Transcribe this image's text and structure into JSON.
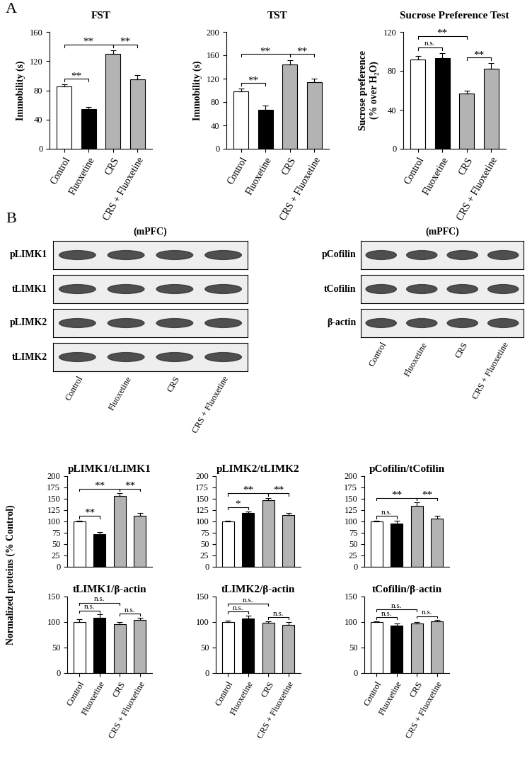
{
  "panel_labels": [
    "A",
    "B"
  ],
  "shared_ylabel": "Normalized proteins (% Control)",
  "blots": [
    {
      "title": "(mPFC)",
      "rows": [
        "pLIMK1",
        "tLIMK1",
        "pLIMK2",
        "tLIMK2"
      ],
      "lanes": [
        "Control",
        "Fluoxetine",
        "CRS",
        "CRS + Fluoxetine"
      ]
    },
    {
      "title": "(mPFC)",
      "rows": [
        "pCofilin",
        "tCofilin",
        "β-actin"
      ],
      "lanes": [
        "Control",
        "Fluoxetine",
        "CRS",
        "CRS + Fluoxetine"
      ]
    }
  ],
  "chart_data": [
    {
      "type": "bar",
      "title": "FST",
      "ylabel": "Immobility (s)",
      "categories": [
        "Control",
        "Fluoxetine",
        "CRS",
        "CRS + Fluoxetine"
      ],
      "values": [
        85,
        54,
        130,
        95
      ],
      "errors": [
        3,
        3,
        5,
        6
      ],
      "colors": [
        "#ffffff",
        "#000000",
        "#b3b3b3",
        "#b3b3b3"
      ],
      "ylim": [
        0,
        160
      ],
      "yticks": [
        0,
        40,
        80,
        120,
        160
      ],
      "annotations": [
        {
          "between": [
            "Control",
            "Fluoxetine"
          ],
          "text": "**"
        },
        {
          "between": [
            "Control",
            "CRS"
          ],
          "text": "**"
        },
        {
          "between": [
            "CRS",
            "CRS + Fluoxetine"
          ],
          "text": "**"
        }
      ]
    },
    {
      "type": "bar",
      "title": "TST",
      "ylabel": "Immobility (s)",
      "categories": [
        "Control",
        "Fluoxetine",
        "CRS",
        "CRS + Fluoxetine"
      ],
      "values": [
        98,
        67,
        144,
        114
      ],
      "errors": [
        5,
        7,
        8,
        6
      ],
      "colors": [
        "#ffffff",
        "#000000",
        "#b3b3b3",
        "#b3b3b3"
      ],
      "ylim": [
        0,
        200
      ],
      "yticks": [
        0,
        40,
        80,
        120,
        160,
        200
      ],
      "annotations": [
        {
          "between": [
            "Control",
            "Fluoxetine"
          ],
          "text": "**"
        },
        {
          "between": [
            "Control",
            "CRS"
          ],
          "text": "**"
        },
        {
          "between": [
            "CRS",
            "CRS + Fluoxetine"
          ],
          "text": "**"
        }
      ]
    },
    {
      "type": "bar",
      "title": "Sucrose Preference Test",
      "ylabel": "Sucrose preference\n(% over H₂O)",
      "categories": [
        "Control",
        "Fluoxetine",
        "CRS",
        "CRS + Fluoxetine"
      ],
      "values": [
        92,
        93,
        57,
        82
      ],
      "errors": [
        3,
        5,
        3,
        6
      ],
      "colors": [
        "#ffffff",
        "#000000",
        "#b3b3b3",
        "#b3b3b3"
      ],
      "ylim": [
        0,
        120
      ],
      "yticks": [
        0,
        40,
        80,
        120
      ],
      "annotations": [
        {
          "between": [
            "Control",
            "Fluoxetine"
          ],
          "text": "n.s."
        },
        {
          "between": [
            "Control",
            "CRS"
          ],
          "text": "**"
        },
        {
          "between": [
            "CRS",
            "CRS + Fluoxetine"
          ],
          "text": "**"
        }
      ]
    },
    {
      "type": "bar",
      "title": "pLIMK1/tLIMK1",
      "tick_labels": "y",
      "categories": [
        "Control",
        "Fluoxetine",
        "CRS",
        "CRS + Fluoxetine"
      ],
      "values": [
        100,
        72,
        157,
        112
      ],
      "errors": [
        2,
        4,
        5,
        6
      ],
      "colors": [
        "#ffffff",
        "#000000",
        "#b3b3b3",
        "#b3b3b3"
      ],
      "ylim": [
        0,
        200
      ],
      "yticks": [
        0,
        25,
        50,
        75,
        100,
        125,
        150,
        175,
        200
      ],
      "annotations": [
        {
          "between": [
            "Control",
            "Fluoxetine"
          ],
          "text": "**"
        },
        {
          "between": [
            "Control",
            "CRS"
          ],
          "text": "**"
        },
        {
          "between": [
            "CRS",
            "CRS + Fluoxetine"
          ],
          "text": "**"
        }
      ]
    },
    {
      "type": "bar",
      "title": "pLIMK2/tLIMK2",
      "tick_labels": "y",
      "categories": [
        "Control",
        "Fluoxetine",
        "CRS",
        "CRS + Fluoxetine"
      ],
      "values": [
        100,
        118,
        147,
        114
      ],
      "errors": [
        2,
        4,
        5,
        4
      ],
      "colors": [
        "#ffffff",
        "#000000",
        "#b3b3b3",
        "#b3b3b3"
      ],
      "ylim": [
        0,
        200
      ],
      "yticks": [
        0,
        25,
        50,
        75,
        100,
        125,
        150,
        175,
        200
      ],
      "annotations": [
        {
          "between": [
            "Control",
            "Fluoxetine"
          ],
          "text": "*"
        },
        {
          "between": [
            "Control",
            "CRS"
          ],
          "text": "**"
        },
        {
          "between": [
            "CRS",
            "CRS + Fluoxetine"
          ],
          "text": "**"
        }
      ]
    },
    {
      "type": "bar",
      "title": "pCofilin/tCofilin",
      "tick_labels": "y",
      "categories": [
        "Control",
        "Fluoxetine",
        "CRS",
        "CRS + Fluoxetine"
      ],
      "values": [
        100,
        96,
        134,
        107
      ],
      "errors": [
        2,
        5,
        8,
        6
      ],
      "colors": [
        "#ffffff",
        "#000000",
        "#b3b3b3",
        "#b3b3b3"
      ],
      "ylim": [
        0,
        200
      ],
      "yticks": [
        0,
        25,
        50,
        75,
        100,
        125,
        150,
        175,
        200
      ],
      "annotations": [
        {
          "between": [
            "Control",
            "Fluoxetine"
          ],
          "text": "n.s."
        },
        {
          "between": [
            "Control",
            "CRS"
          ],
          "text": "**"
        },
        {
          "between": [
            "CRS",
            "CRS + Fluoxetine"
          ],
          "text": "**"
        }
      ]
    },
    {
      "type": "bar",
      "title": "tLIMK1/β-actin",
      "categories": [
        "Control",
        "Fluoxetine",
        "CRS",
        "CRS + Fluoxetine"
      ],
      "values": [
        100,
        108,
        96,
        104
      ],
      "errors": [
        5,
        7,
        4,
        5
      ],
      "colors": [
        "#ffffff",
        "#000000",
        "#b3b3b3",
        "#b3b3b3"
      ],
      "ylim": [
        0,
        150
      ],
      "yticks": [
        0,
        50,
        100,
        150
      ],
      "annotations": [
        {
          "between": [
            "Control",
            "Fluoxetine"
          ],
          "text": "n.s."
        },
        {
          "between": [
            "Control",
            "CRS"
          ],
          "text": "n.s."
        },
        {
          "between": [
            "CRS",
            "CRS + Fluoxetine"
          ],
          "text": "n.s."
        }
      ]
    },
    {
      "type": "bar",
      "title": "tLIMK2/β-actin",
      "categories": [
        "Control",
        "Fluoxetine",
        "CRS",
        "CRS + Fluoxetine"
      ],
      "values": [
        100,
        107,
        99,
        95
      ],
      "errors": [
        3,
        6,
        3,
        5
      ],
      "colors": [
        "#ffffff",
        "#000000",
        "#b3b3b3",
        "#b3b3b3"
      ],
      "ylim": [
        0,
        150
      ],
      "yticks": [
        0,
        50,
        100,
        150
      ],
      "annotations": [
        {
          "between": [
            "Control",
            "Fluoxetine"
          ],
          "text": "n.s."
        },
        {
          "between": [
            "Control",
            "CRS"
          ],
          "text": "n.s."
        },
        {
          "between": [
            "CRS",
            "CRS + Fluoxetine"
          ],
          "text": "n.s."
        }
      ]
    },
    {
      "type": "bar",
      "title": "tCofilin/β-actin",
      "categories": [
        "Control",
        "Fluoxetine",
        "CRS",
        "CRS + Fluoxetine"
      ],
      "values": [
        100,
        93,
        97,
        101
      ],
      "errors": [
        2,
        4,
        3,
        3
      ],
      "colors": [
        "#ffffff",
        "#000000",
        "#b3b3b3",
        "#b3b3b3"
      ],
      "ylim": [
        0,
        150
      ],
      "yticks": [
        0,
        50,
        100,
        150
      ],
      "annotations": [
        {
          "between": [
            "Control",
            "Fluoxetine"
          ],
          "text": "n.s."
        },
        {
          "between": [
            "Control",
            "CRS"
          ],
          "text": "n.s."
        },
        {
          "between": [
            "CRS",
            "CRS + Fluoxetine"
          ],
          "text": "n.s."
        }
      ]
    }
  ]
}
